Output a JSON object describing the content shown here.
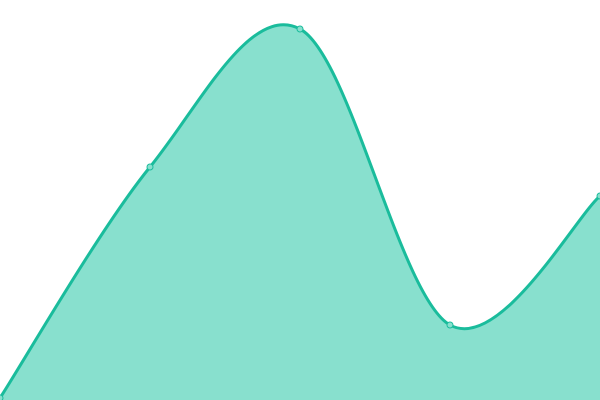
{
  "chart_data": {
    "type": "area",
    "smooth": true,
    "x": [
      0,
      1,
      2,
      3,
      4
    ],
    "values": [
      2,
      233,
      371,
      75,
      204
    ],
    "ylim": [
      0,
      400
    ],
    "title": "",
    "xlabel": "",
    "ylabel": "",
    "grid": false,
    "axes_visible": false,
    "colors": {
      "line": "#1abc9c",
      "fill": "#88e0ce",
      "point": "#88e0ce"
    }
  }
}
